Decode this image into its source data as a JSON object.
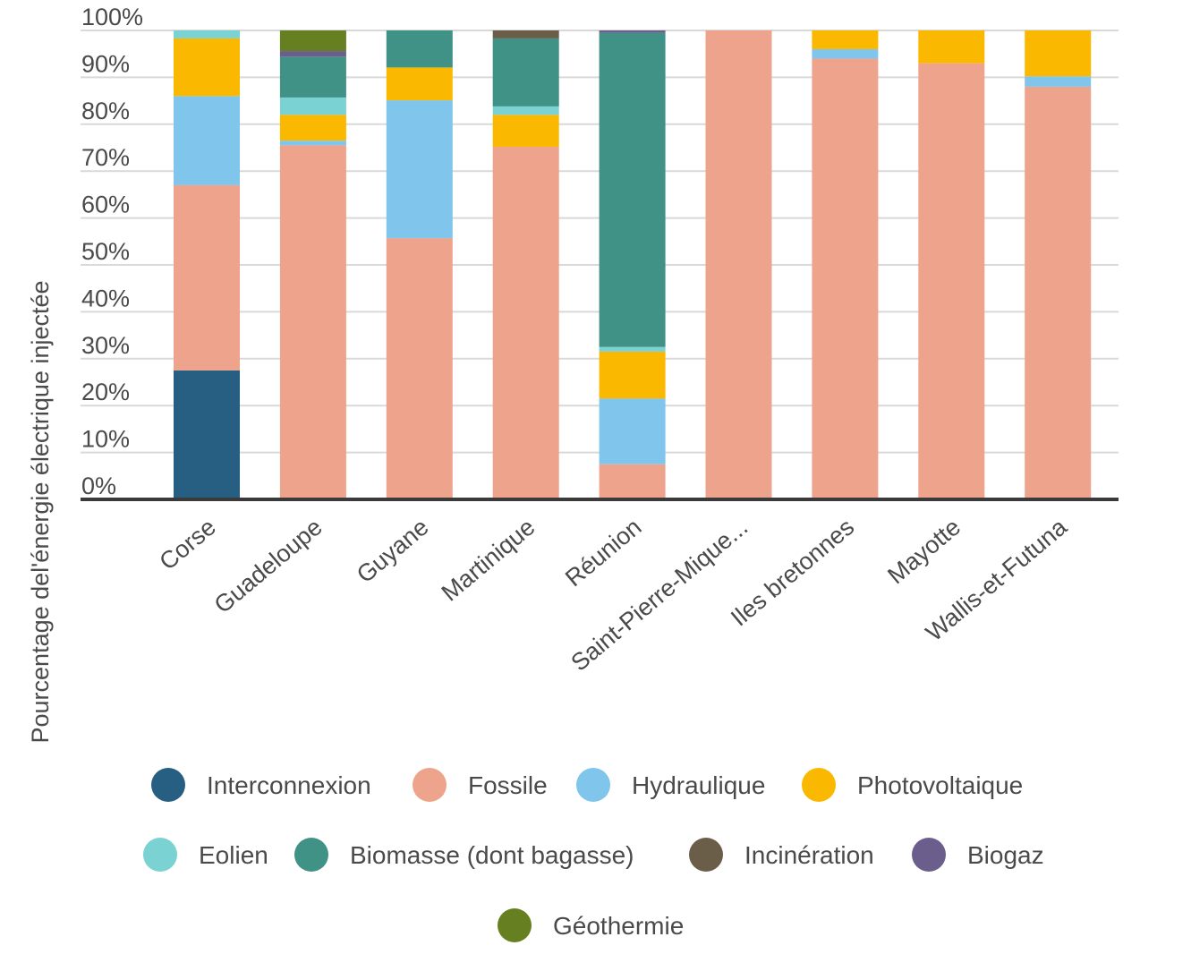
{
  "chart_data": {
    "type": "bar",
    "stacked": true,
    "title": "",
    "xlabel": "",
    "ylabel": "Pourcentage del'énergie électrique injectée",
    "ylim": [
      0,
      100
    ],
    "y_ticks": [
      "0%",
      "10%",
      "20%",
      "30%",
      "40%",
      "50%",
      "60%",
      "70%",
      "80%",
      "90%",
      "100%"
    ],
    "grid": true,
    "legend_position": "bottom",
    "categories": [
      "Corse",
      "Guadeloupe",
      "Guyane",
      "Martinique",
      "Réunion",
      "Saint-Pierre-Mique...",
      "Iles bretonnes",
      "Mayotte",
      "Wallis-et-Futuna"
    ],
    "series": [
      {
        "name": "Interconnexion",
        "color": "#275f82",
        "values": [
          27.5,
          0,
          0,
          0,
          0,
          0,
          0,
          0,
          0
        ]
      },
      {
        "name": "Fossile",
        "color": "#eea38c",
        "values": [
          39.5,
          75.5,
          55.7,
          75.2,
          7.5,
          100,
          94,
          93,
          88
        ]
      },
      {
        "name": "Hydraulique",
        "color": "#80c5ec",
        "values": [
          19,
          1,
          29.4,
          0,
          14,
          0,
          2,
          0,
          2.2
        ]
      },
      {
        "name": "Photovoltaique",
        "color": "#fbb800",
        "values": [
          12.3,
          5.5,
          7,
          6.8,
          10,
          0,
          4,
          7,
          9.8
        ]
      },
      {
        "name": "Eolien",
        "color": "#7ad2d2",
        "values": [
          1.7,
          3.7,
          0,
          1.8,
          1,
          0,
          0,
          0,
          0
        ]
      },
      {
        "name": "Biomasse (dont bagasse)",
        "color": "#3f9285",
        "values": [
          0,
          8.7,
          7.9,
          14.5,
          67,
          0,
          0,
          0,
          0
        ]
      },
      {
        "name": "Incinération",
        "color": "#6b5e49",
        "values": [
          0,
          0,
          0,
          1.7,
          0,
          0,
          0,
          0,
          0
        ]
      },
      {
        "name": "Biogaz",
        "color": "#6b5e8c",
        "values": [
          0,
          1.2,
          0,
          0,
          0.5,
          0,
          0,
          0,
          0
        ]
      },
      {
        "name": "Géothermie",
        "color": "#657f21",
        "values": [
          0,
          4.4,
          0,
          0,
          0,
          0,
          0,
          0,
          0
        ]
      }
    ]
  }
}
